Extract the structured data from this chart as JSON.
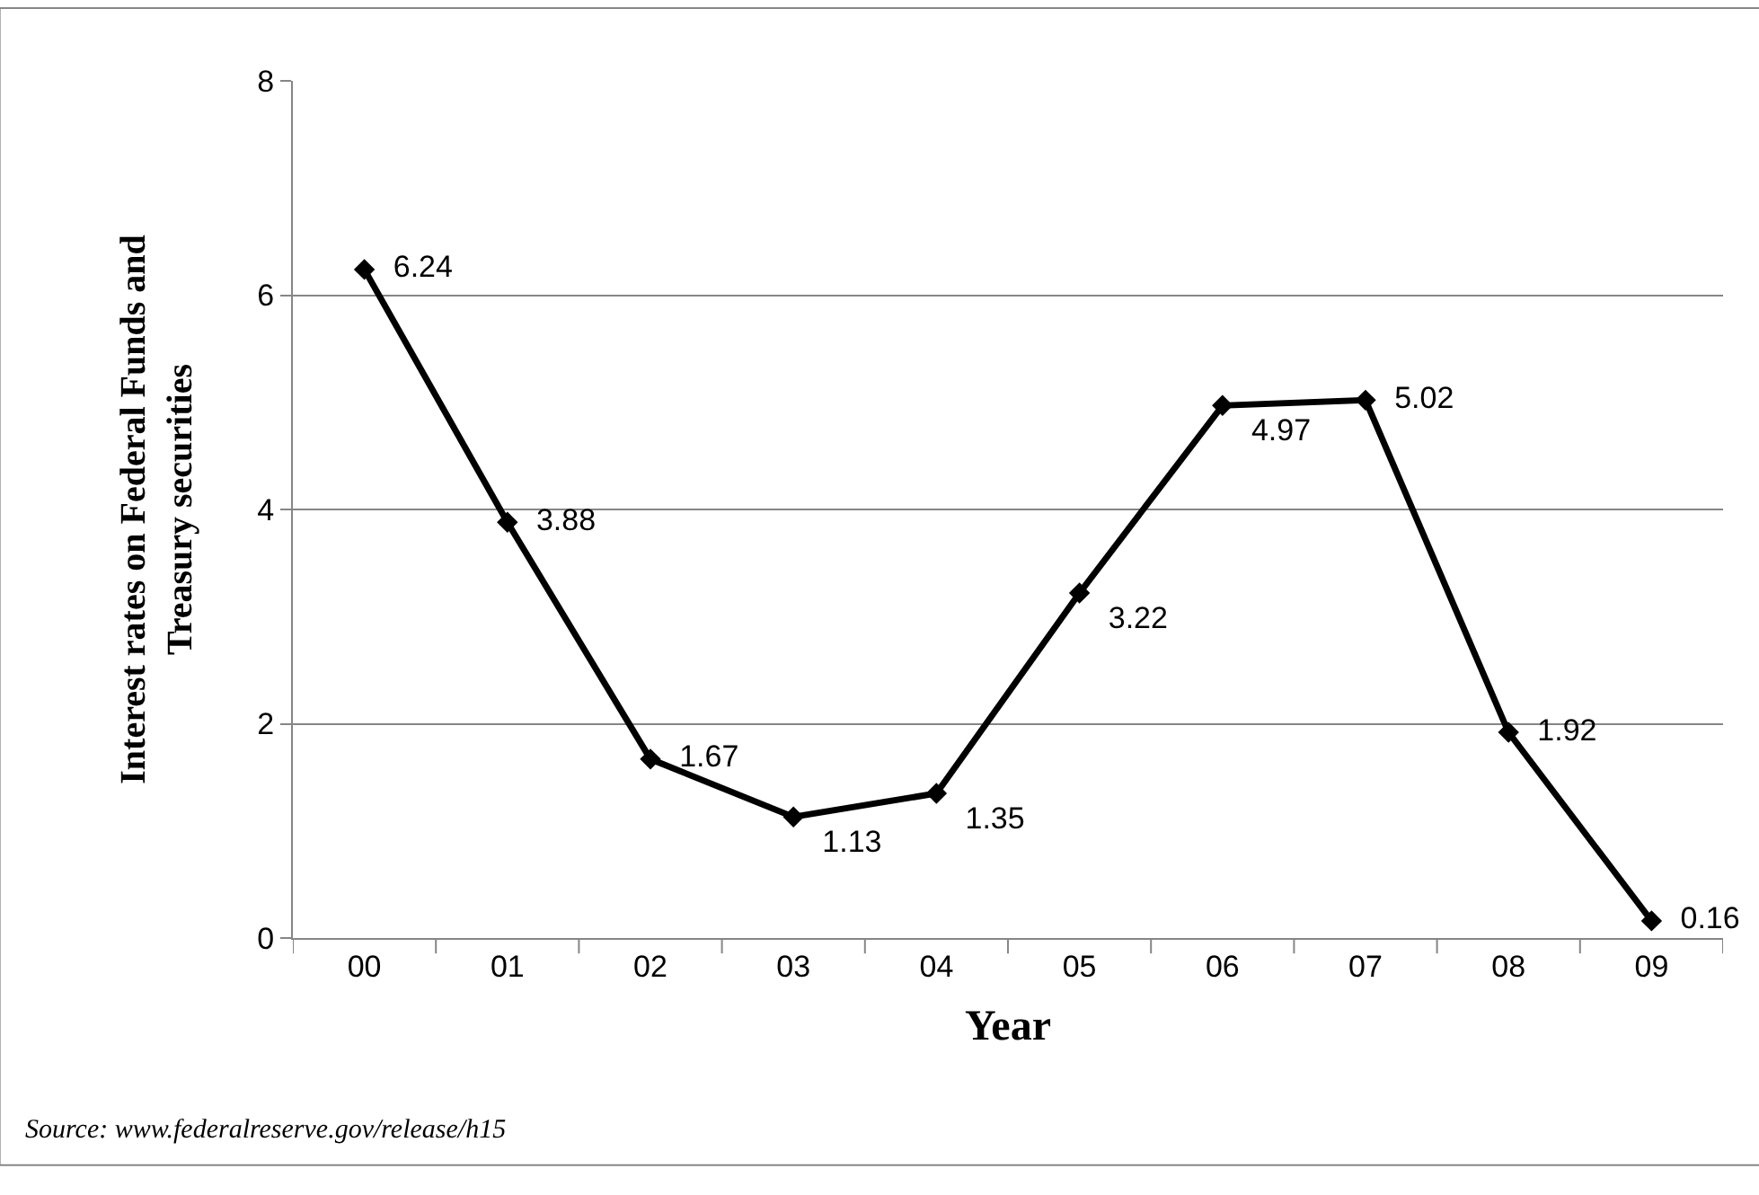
{
  "chart_data": {
    "type": "line",
    "xlabel": "Year",
    "ylabel": "Interest rates on Federal Funds and Treasury securities",
    "categories": [
      "00",
      "01",
      "02",
      "03",
      "04",
      "05",
      "06",
      "07",
      "08",
      "09"
    ],
    "series": [
      {
        "color": "#000000",
        "values": [
          6.24,
          3.88,
          1.67,
          1.13,
          1.35,
          3.22,
          4.97,
          5.02,
          1.92,
          0.16
        ]
      }
    ],
    "ylim": [
      0,
      8
    ],
    "yticks": [
      0,
      2,
      4,
      6,
      8
    ],
    "grid": "y",
    "marker": "diamond",
    "line_style": "solid",
    "data_labels": true,
    "annotations": [
      "Source: www.federalreserve.gov/release/h15"
    ]
  }
}
